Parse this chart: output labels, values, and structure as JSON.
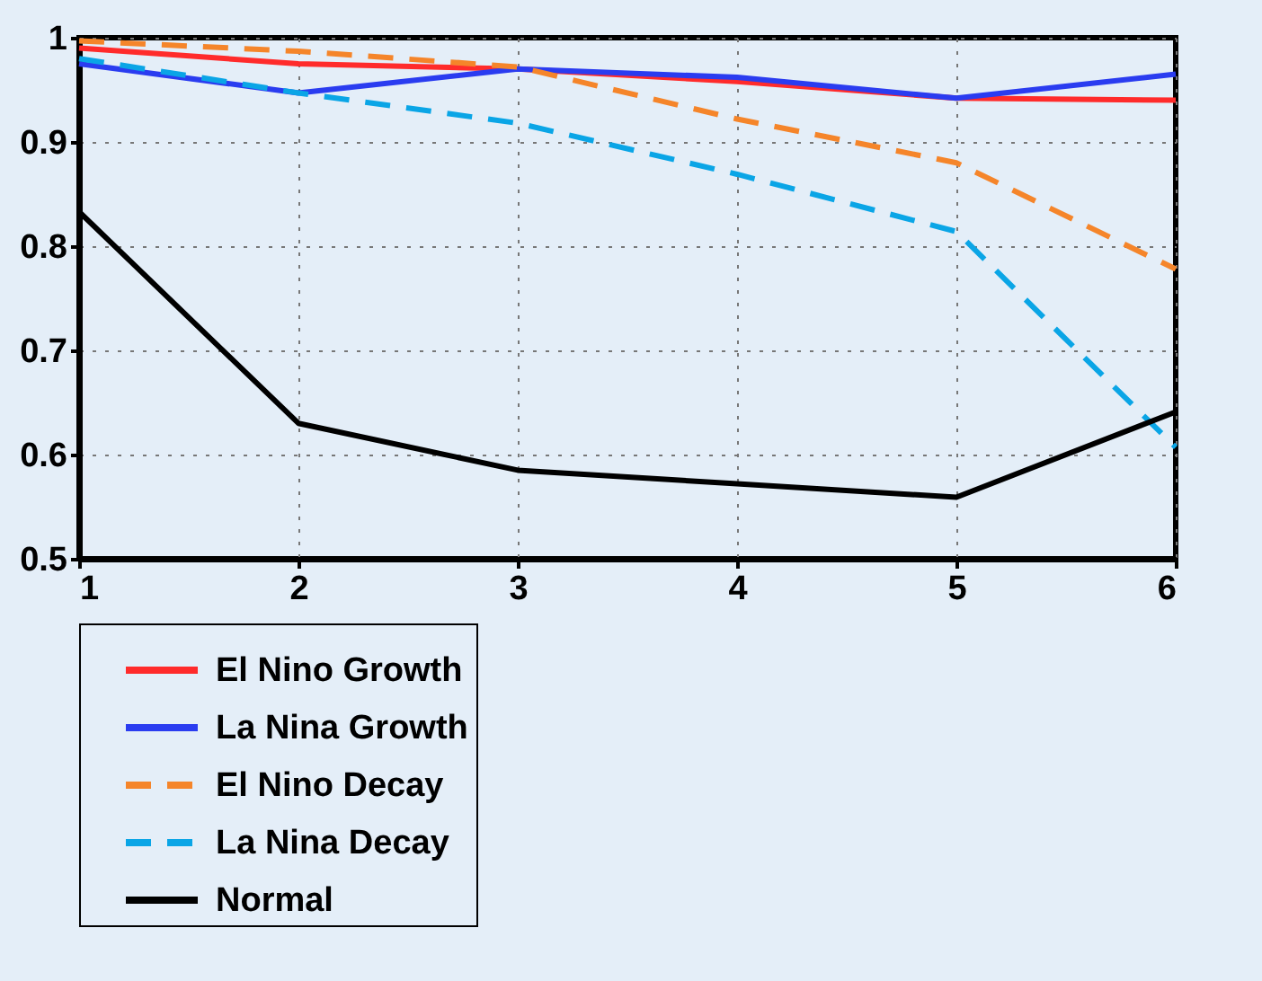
{
  "chart_data": {
    "type": "line",
    "x": [
      1,
      2,
      3,
      4,
      5,
      6
    ],
    "xlim": [
      1,
      6
    ],
    "xticks": [
      1,
      2,
      3,
      4,
      5,
      6
    ],
    "ylim": [
      0.5,
      1
    ],
    "yticks": [
      0.5,
      0.6,
      0.7,
      0.8,
      0.9,
      1
    ],
    "grid": true,
    "legend": "bottom",
    "series": [
      {
        "name": "El Nino Growth",
        "color": "#ff2b2b",
        "line_style": "solid",
        "values": [
          0.99,
          0.975,
          0.97,
          0.958,
          0.942,
          0.94
        ]
      },
      {
        "name": "La Nina Growth",
        "color": "#2a3cf0",
        "line_style": "solid",
        "values": [
          0.975,
          0.947,
          0.97,
          0.962,
          0.942,
          0.965
        ]
      },
      {
        "name": "El Nino Decay",
        "color": "#f5852a",
        "line_style": "dashed",
        "values": [
          0.997,
          0.987,
          0.972,
          0.922,
          0.88,
          0.778
        ]
      },
      {
        "name": "La Nina Decay",
        "color": "#0aa5e6",
        "line_style": "dashed",
        "values": [
          0.98,
          0.947,
          0.918,
          0.869,
          0.814,
          0.607
        ]
      },
      {
        "name": "Normal",
        "color": "#000000",
        "line_style": "solid",
        "values": [
          0.833,
          0.63,
          0.585,
          0.572,
          0.559,
          0.641
        ]
      }
    ]
  }
}
